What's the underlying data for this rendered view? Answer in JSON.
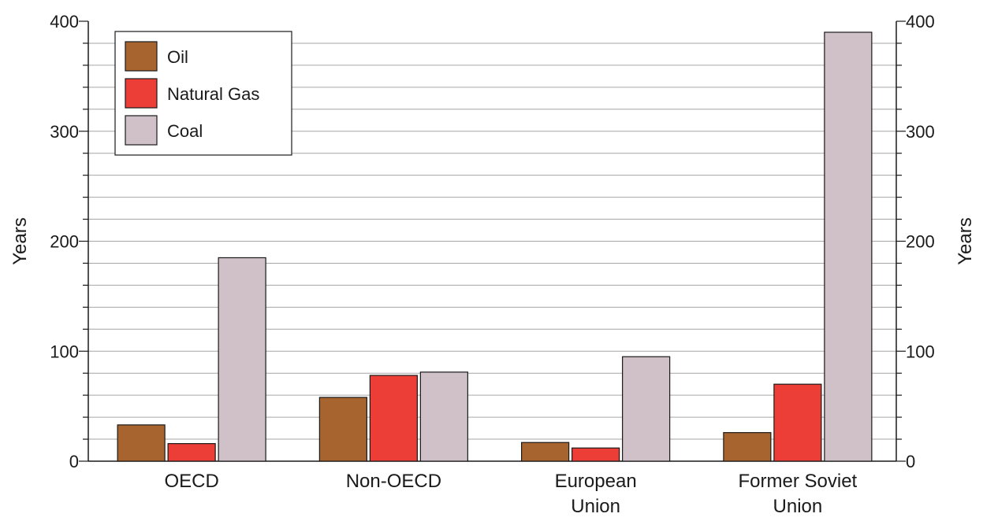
{
  "chart_data": {
    "type": "bar",
    "title": "",
    "xlabel": "",
    "ylabel": "Years",
    "ylabel_right": "Years",
    "ylim": [
      0,
      400
    ],
    "y_ticks": [
      "0",
      "100",
      "200",
      "300",
      "400"
    ],
    "y_ticks_right": [
      "0",
      "100",
      "200",
      "300",
      "400"
    ],
    "grid": true,
    "legend_position": "top-left",
    "categories": [
      [
        "OECD"
      ],
      [
        "Non-OECD"
      ],
      [
        "European",
        "Union"
      ],
      [
        "Former Soviet",
        "Union"
      ]
    ],
    "series": [
      {
        "name": "Oil",
        "color": "#a8642e",
        "values": [
          33,
          58,
          17,
          26
        ]
      },
      {
        "name": "Natural Gas",
        "color": "#ec3d36",
        "values": [
          16,
          78,
          12,
          70
        ]
      },
      {
        "name": "Coal",
        "color": "#cfc1c7",
        "values": [
          185,
          81,
          95,
          390
        ]
      }
    ]
  }
}
